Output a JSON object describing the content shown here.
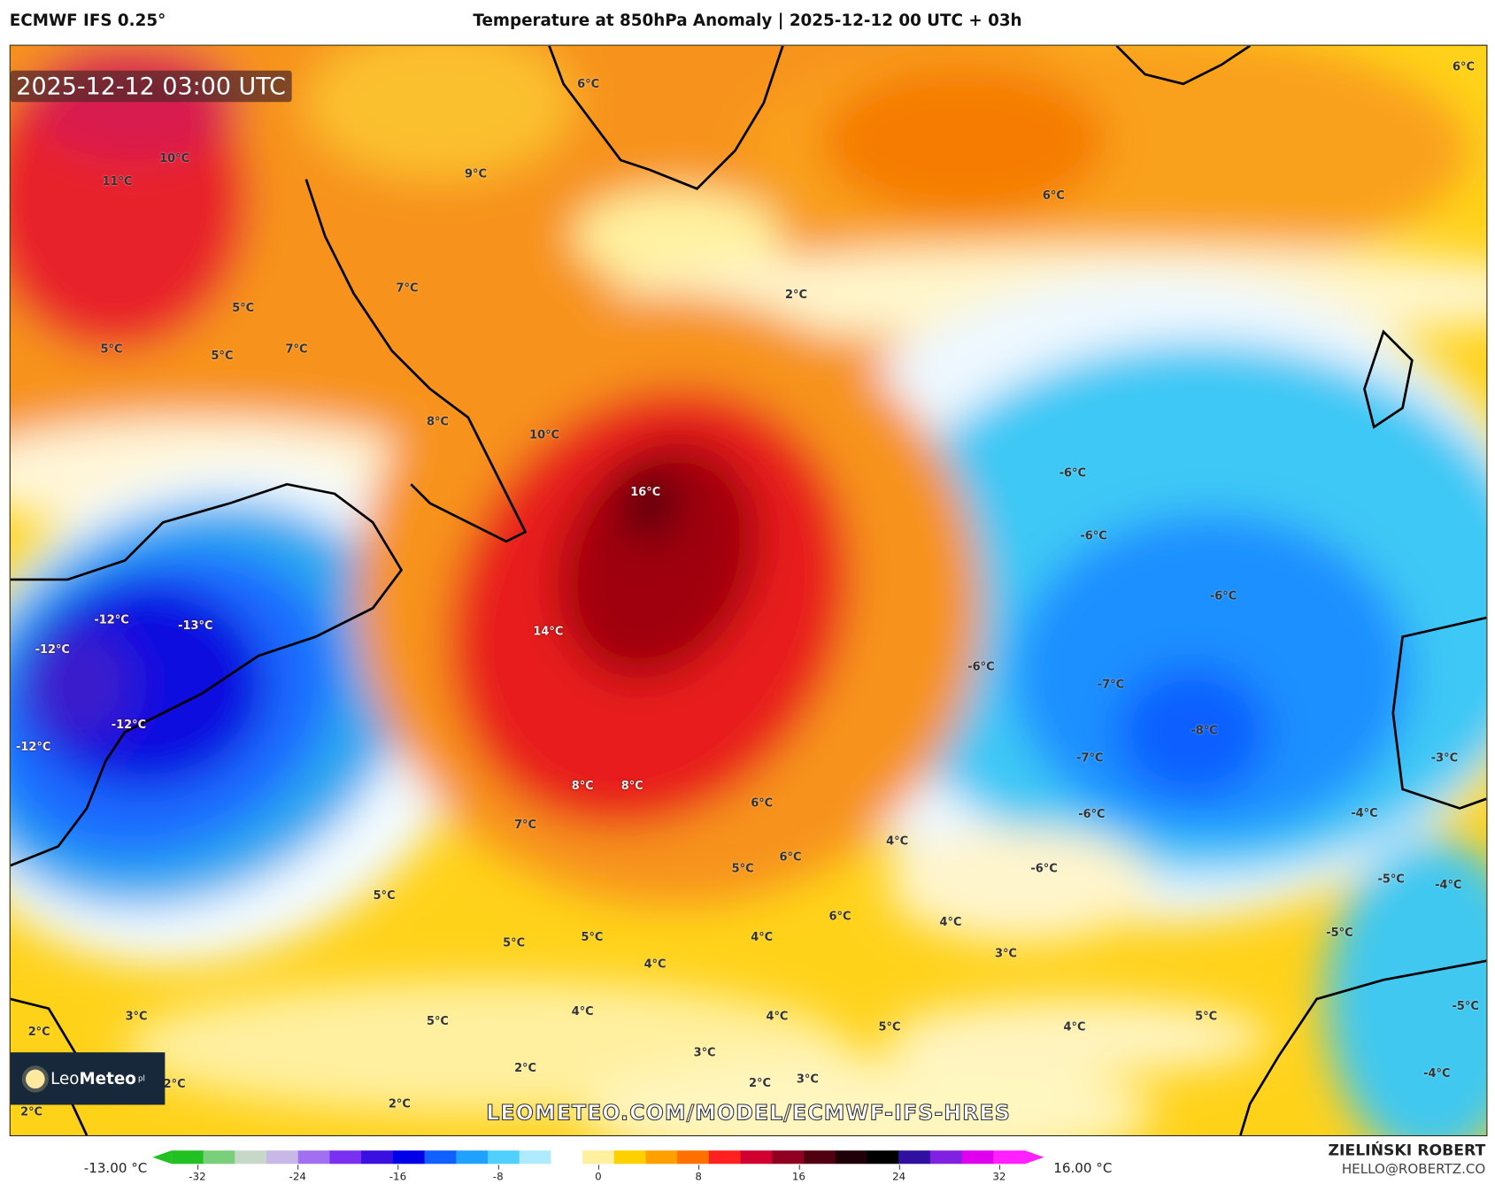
{
  "header": {
    "model": "ECMWF IFS 0.25°",
    "title": "Temperature at 850hPa Anomaly | 2025-12-12 00 UTC + 03h"
  },
  "map": {
    "valid_time": "2025-12-12 03:00 UTC",
    "watermark_url": "LEOMETEO.COM/MODEL/ECMWF-IFS-HRES",
    "logo": {
      "text_a": "Leo",
      "text_b": "Meteo",
      "suffix": "pl"
    },
    "labels": [
      "11°C",
      "10°C",
      "9°C",
      "6°C",
      "6°C",
      "6°C",
      "7°C",
      "5°C",
      "5°C",
      "5°C",
      "7°C",
      "8°C",
      "2°C",
      "10°C",
      "16°C",
      "14°C",
      "-12°C",
      "-13°C",
      "-12°C",
      "-12°C",
      "-12°C",
      "-6°C",
      "-6°C",
      "-6°C",
      "-6°C",
      "-7°C",
      "-8°C",
      "-7°C",
      "-6°C",
      "-6°C",
      "-3°C",
      "-4°C",
      "-5°C",
      "-4°C",
      "-5°C",
      "-5°C",
      "-4°C",
      "8°C",
      "8°C",
      "7°C",
      "6°C",
      "6°C",
      "4°C",
      "5°C",
      "6°C",
      "4°C",
      "5°C",
      "5°C",
      "5°C",
      "4°C",
      "4°C",
      "3°C",
      "3°C",
      "5°C",
      "4°C",
      "4°C",
      "5°C",
      "4°C",
      "5°C",
      "2°C",
      "2°C",
      "2°C",
      "3°C",
      "2°C",
      "2°C",
      "3°C",
      "2°C"
    ]
  },
  "colorbar": {
    "min_label": "-13.00 °C",
    "max_label": "16.00 °C",
    "ticks": [
      "-32",
      "-24",
      "-16",
      "-8",
      "0",
      "8",
      "16",
      "24",
      "32"
    ],
    "colors": [
      "#22c022",
      "#7ad07a",
      "#c8d8c8",
      "#c8b8e8",
      "#a070f0",
      "#7a30f0",
      "#3a10e0",
      "#0000e8",
      "#1060ff",
      "#20a0ff",
      "#50d0ff",
      "#b0eaff",
      "#ffffff",
      "#fff0a0",
      "#ffd000",
      "#ffa000",
      "#ff7000",
      "#ff2020",
      "#d00030",
      "#900020",
      "#500010",
      "#200008",
      "#000000",
      "#3010a0",
      "#8020e0",
      "#e000f0",
      "#ff20ff"
    ]
  },
  "credits": {
    "author": "ZIELIŃSKI ROBERT",
    "email": "HELLO@ROBERTZ.CO"
  }
}
